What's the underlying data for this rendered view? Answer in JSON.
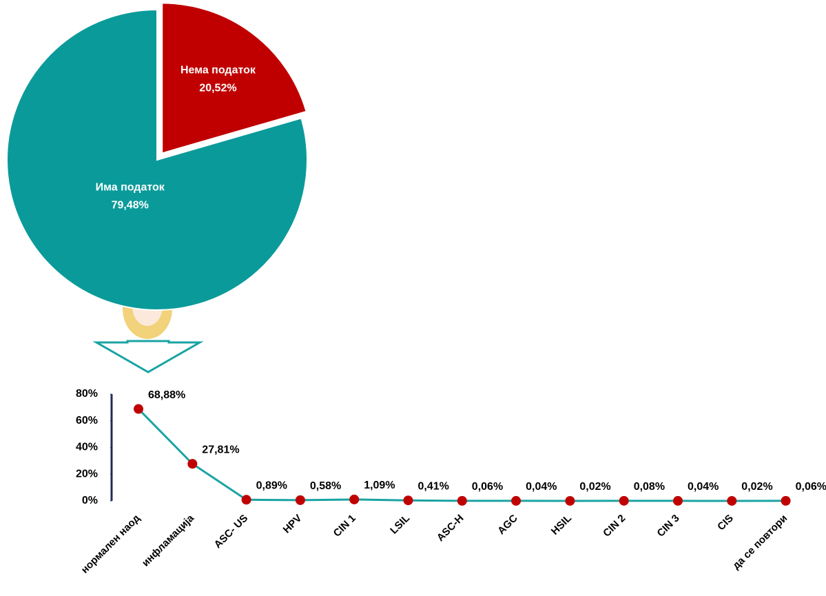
{
  "chart_data": [
    {
      "type": "pie",
      "categories": [
        "Нема податок",
        "Има податок"
      ],
      "values": [
        20.52,
        79.48
      ],
      "value_labels": [
        "20,52%",
        "79,48%"
      ],
      "colors": [
        "#c00000",
        "#0b9a9a"
      ]
    },
    {
      "type": "line",
      "categories": [
        "нормален наод",
        "инфламација",
        "ASC- US",
        "HPV",
        "CIN 1",
        "LSIL",
        "ASC-H",
        "AGC",
        "HSIL",
        "CIN 2",
        "CIN 3",
        "CIS",
        "да се повтори"
      ],
      "series": [
        {
          "color": "#1aa3a3",
          "marker_color": "#c00000",
          "values": [
            68.88,
            27.81,
            0.89,
            0.58,
            1.09,
            0.41,
            0.06,
            0.04,
            0.02,
            0.08,
            0.04,
            0.02,
            0.06
          ],
          "value_labels": [
            "68,88%",
            "27,81%",
            "0,89%",
            "0,58%",
            "1,09%",
            "0,41%",
            "0,06%",
            "0,04%",
            "0,02%",
            "0,08%",
            "0,04%",
            "0,02%",
            "0,06%"
          ]
        }
      ],
      "ylim": [
        0,
        80
      ],
      "yticks": [
        {
          "value": 0,
          "label": "0%"
        },
        {
          "value": 20,
          "label": "20%"
        },
        {
          "value": 40,
          "label": "40%"
        },
        {
          "value": 60,
          "label": "60%"
        },
        {
          "value": 80,
          "label": "80%"
        }
      ]
    }
  ]
}
